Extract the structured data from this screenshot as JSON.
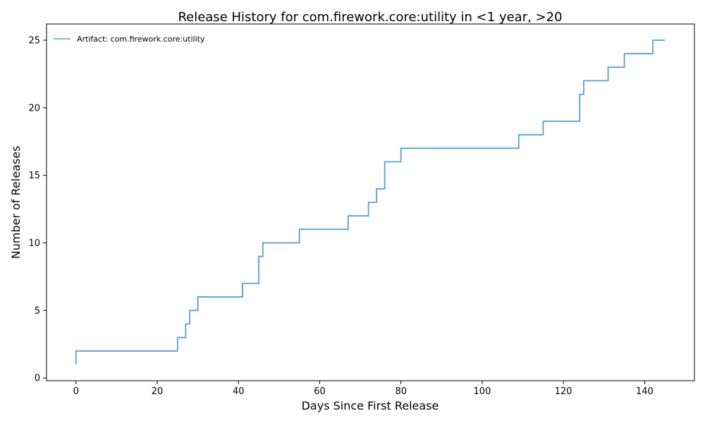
{
  "chart_data": {
    "type": "line",
    "title": "Release History for com.firework.core:utility in <1 year, >20",
    "xlabel": "Days Since First Release",
    "ylabel": "Number of Releases",
    "xlim": [
      -7.25,
      152.25
    ],
    "ylim": [
      -0.2,
      26.2
    ],
    "xticks": [
      0,
      20,
      40,
      60,
      80,
      100,
      120,
      140
    ],
    "yticks": [
      0,
      5,
      10,
      15,
      20,
      25
    ],
    "grid": false,
    "legend_position": "top-left",
    "series": [
      {
        "name": "Artifact: com.firework.core:utility",
        "color": "#5b9fcc",
        "step": "post",
        "x": [
          0,
          0,
          25,
          27,
          28,
          30,
          41,
          45,
          46,
          55,
          67,
          72,
          74,
          76,
          80,
          109,
          115,
          124,
          125,
          131,
          135,
          142,
          145
        ],
        "y": [
          1,
          2,
          3,
          4,
          5,
          6,
          7,
          9,
          10,
          11,
          12,
          13,
          14,
          16,
          17,
          18,
          19,
          21,
          22,
          23,
          24,
          25,
          25
        ]
      }
    ]
  }
}
